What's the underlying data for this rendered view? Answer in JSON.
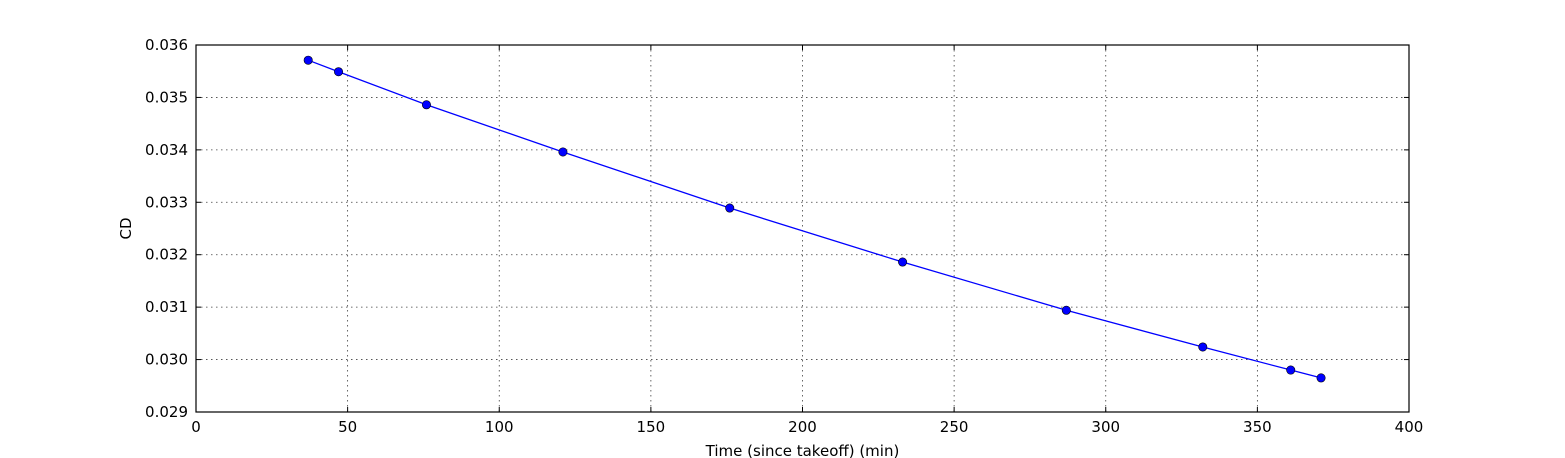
{
  "chart_data": {
    "type": "line",
    "title": "",
    "xlabel": "Time (since takeoff) (min)",
    "ylabel": "CD",
    "xlim": [
      0,
      400
    ],
    "ylim": [
      0.029,
      0.036
    ],
    "xticks": [
      0,
      50,
      100,
      150,
      200,
      250,
      300,
      350,
      400
    ],
    "xtick_labels": [
      "0",
      "50",
      "100",
      "150",
      "200",
      "250",
      "300",
      "350",
      "400"
    ],
    "yticks": [
      0.029,
      0.03,
      0.031,
      0.032,
      0.033,
      0.034,
      0.035,
      0.036
    ],
    "ytick_labels": [
      "0.029",
      "0.030",
      "0.031",
      "0.032",
      "0.033",
      "0.034",
      "0.035",
      "0.036"
    ],
    "grid": true,
    "series": [
      {
        "color": "#0000ff",
        "marker": "circle",
        "x": [
          37,
          47,
          76,
          121,
          176,
          233,
          287,
          332,
          361,
          371
        ],
        "y": [
          0.03571,
          0.03549,
          0.03486,
          0.03396,
          0.03289,
          0.03186,
          0.03094,
          0.03024,
          0.0298,
          0.02965
        ]
      }
    ]
  }
}
